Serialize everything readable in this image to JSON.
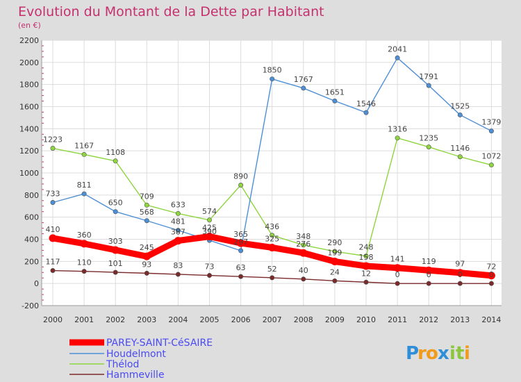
{
  "chart_data": {
    "type": "line",
    "title": "Evolution du Montant de la Dette par Habitant",
    "subtitle": "(en €)",
    "categories": [
      "2000",
      "2001",
      "2002",
      "2003",
      "2004",
      "2005",
      "2006",
      "2007",
      "2008",
      "2009",
      "2010",
      "2011",
      "2012",
      "2013",
      "2014"
    ],
    "ylim": [
      -200,
      2200
    ],
    "yticks": [
      "-200",
      "0",
      "200",
      "400",
      "600",
      "800",
      "1000",
      "1200",
      "1400",
      "1600",
      "1800",
      "2000",
      "2200"
    ],
    "grid": true,
    "legend_position": "bottom-left",
    "series": [
      {
        "name": "PAREY-SAINT-CéSAIRE",
        "color": "#ff0000",
        "values": [
          410,
          360,
          303,
          245,
          387,
          425,
          365,
          325,
          276,
          199,
          158,
          141,
          119,
          97,
          72
        ],
        "labels": [
          "410",
          "360",
          "303",
          "245",
          "387",
          "425",
          "365",
          "325",
          "276",
          "199",
          "158",
          "141",
          "119",
          "97",
          "72"
        ]
      },
      {
        "name": "Houdelmont",
        "color": "#4d8fd6",
        "values": [
          733,
          811,
          650,
          568,
          481,
          390,
          297,
          1850,
          1767,
          1651,
          1546,
          2041,
          1791,
          1525,
          1379
        ],
        "labels": [
          "733",
          "811",
          "650",
          "568",
          "481",
          "390",
          "297",
          "1850",
          "1767",
          "1651",
          "1546",
          "2041",
          "1791",
          "1525",
          "1379"
        ]
      },
      {
        "name": "Thélod",
        "color": "#8ed53f",
        "values": [
          1223,
          1167,
          1108,
          709,
          633,
          574,
          890,
          436,
          348,
          290,
          248,
          1316,
          1235,
          1146,
          1072
        ],
        "labels": [
          "1223",
          "1167",
          "1108",
          "709",
          "633",
          "574",
          "890",
          "436",
          "348",
          "290",
          "248",
          "1316",
          "1235",
          "1146",
          "1072"
        ]
      },
      {
        "name": "Hammeville",
        "color": "#7a2a2a",
        "values": [
          117,
          110,
          101,
          93,
          83,
          73,
          63,
          52,
          40,
          24,
          12,
          0,
          0,
          0,
          0
        ],
        "labels": [
          "117",
          "110",
          "101",
          "93",
          "83",
          "73",
          "63",
          "52",
          "40",
          "24",
          "12",
          "0",
          "0",
          "0",
          "0"
        ]
      }
    ]
  },
  "branding": {
    "logo_text": "Proxiti",
    "logo_letters": [
      "P",
      "r",
      "o",
      "x",
      "i",
      "t",
      "i"
    ],
    "logo_colors": [
      "#2e8fd8",
      "#f29a1b",
      "#f29a1b",
      "#2e8fd8",
      "#8cc63e",
      "#8cc63e",
      "#f29a1b"
    ]
  }
}
